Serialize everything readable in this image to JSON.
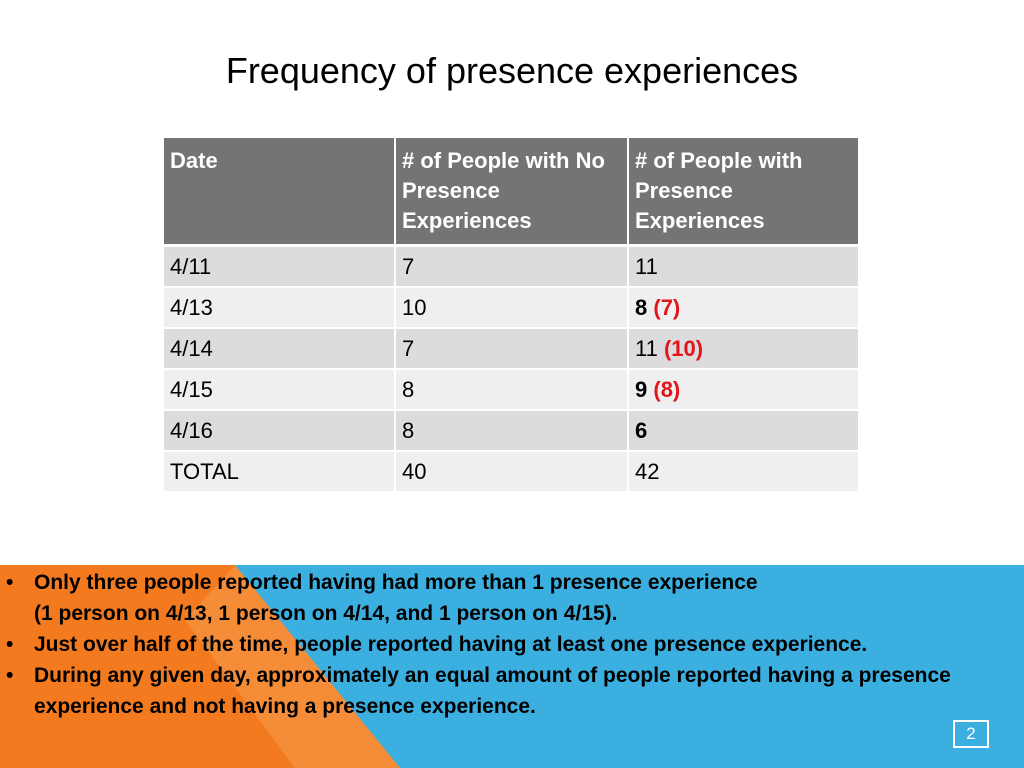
{
  "slide": {
    "title": "Frequency of presence experiences",
    "page_number": "2"
  },
  "table": {
    "headers": [
      "Date",
      "# of People with No Presence Experiences",
      "# of People with Presence Experiences"
    ],
    "rows": [
      {
        "date": "4/11",
        "no_presence": "7",
        "presence": "11",
        "presence_bold": false,
        "presence_note": ""
      },
      {
        "date": "4/13",
        "no_presence": "10",
        "presence": "8",
        "presence_bold": true,
        "presence_note": "(7)"
      },
      {
        "date": "4/14",
        "no_presence": "7",
        "presence": "11",
        "presence_bold": false,
        "presence_note": "(10)"
      },
      {
        "date": "4/15",
        "no_presence": "8",
        "presence": "9",
        "presence_bold": true,
        "presence_note": "(8)"
      },
      {
        "date": "4/16",
        "no_presence": "8",
        "presence": "6",
        "presence_bold": true,
        "presence_note": ""
      },
      {
        "date": "TOTAL",
        "no_presence": "40",
        "presence": "42",
        "presence_bold": false,
        "presence_note": ""
      }
    ]
  },
  "notes": [
    [
      "Only three people reported having had more than 1 presence experience",
      "(1 person on 4/13, 1 person on 4/14, and 1 person on 4/15)."
    ],
    [
      "Just over half of the time, people reported having at least one presence experience."
    ],
    [
      "During any given day, approximately an equal amount of people reported having a presence experience and not having a presence experience."
    ]
  ],
  "colors": {
    "header_bg": "#747476",
    "row_odd": "#dcdcde",
    "row_even": "#efeff0",
    "note_red": "#e3141b",
    "orange": "#f47a20",
    "blue": "#3bb0e0"
  }
}
